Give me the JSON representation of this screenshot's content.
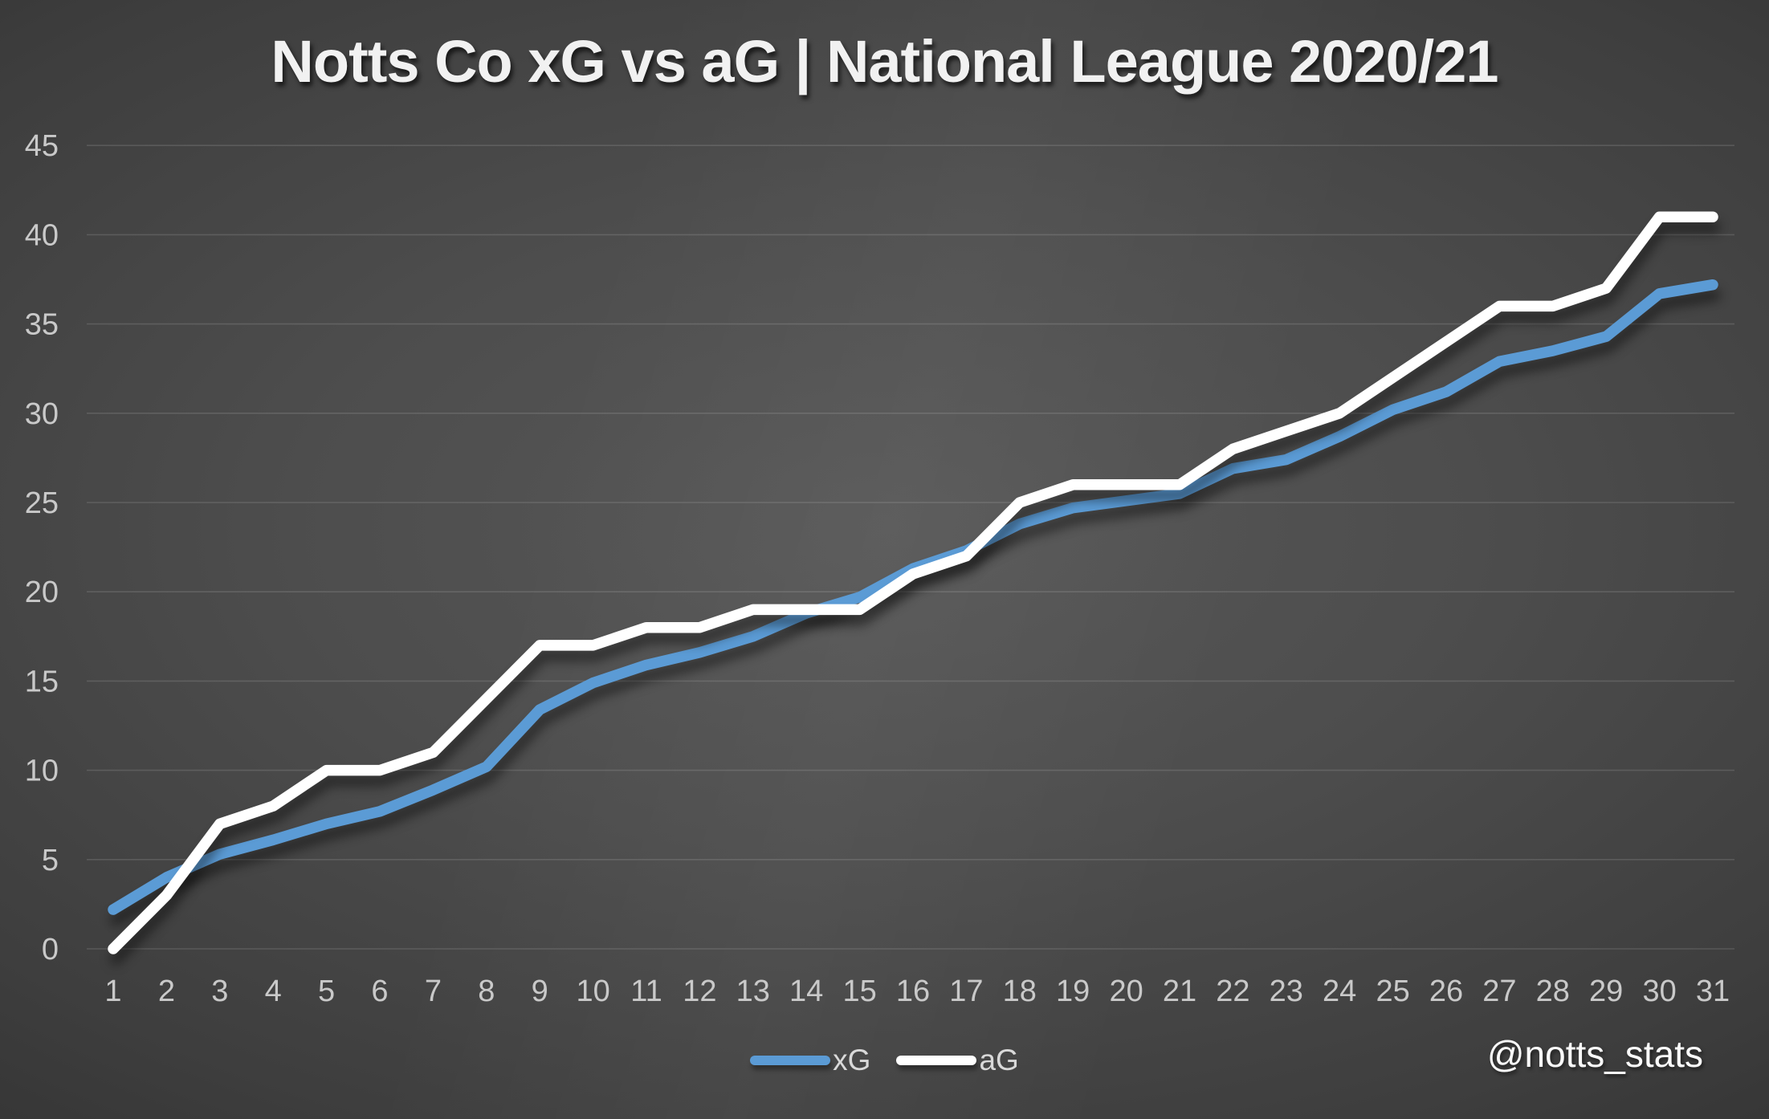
{
  "chart_data": {
    "type": "line",
    "title": "Notts Co xG vs aG | National League 2020/21",
    "xlabel": "",
    "ylabel": "",
    "x": [
      1,
      2,
      3,
      4,
      5,
      6,
      7,
      8,
      9,
      10,
      11,
      12,
      13,
      14,
      15,
      16,
      17,
      18,
      19,
      20,
      21,
      22,
      23,
      24,
      25,
      26,
      27,
      28,
      29,
      30,
      31
    ],
    "series": [
      {
        "name": "xG",
        "color": "#5B9BD5",
        "values": [
          2.2,
          4.0,
          5.3,
          6.1,
          7.0,
          7.7,
          8.9,
          10.2,
          13.4,
          14.9,
          15.9,
          16.6,
          17.5,
          18.8,
          19.7,
          21.3,
          22.3,
          23.8,
          24.7,
          25.1,
          25.5,
          26.9,
          27.4,
          28.7,
          30.2,
          31.2,
          32.9,
          33.5,
          34.3,
          36.7,
          37.2
        ]
      },
      {
        "name": "aG",
        "color": "#FFFFFF",
        "values": [
          0,
          3,
          7,
          8,
          10,
          10,
          11,
          14,
          17,
          17,
          18,
          18,
          19,
          19,
          19,
          21,
          22,
          25,
          26,
          26,
          26,
          28,
          29,
          30,
          32,
          34,
          36,
          36,
          37,
          41,
          41
        ]
      }
    ],
    "y_ticks": [
      0,
      5,
      10,
      15,
      20,
      25,
      30,
      35,
      40,
      45
    ],
    "ylim": [
      0,
      45
    ],
    "grid": true,
    "legend_position": "bottom-center",
    "background": "dark-gray-radial-gradient"
  },
  "footer": {
    "handle": "@notts_stats"
  }
}
